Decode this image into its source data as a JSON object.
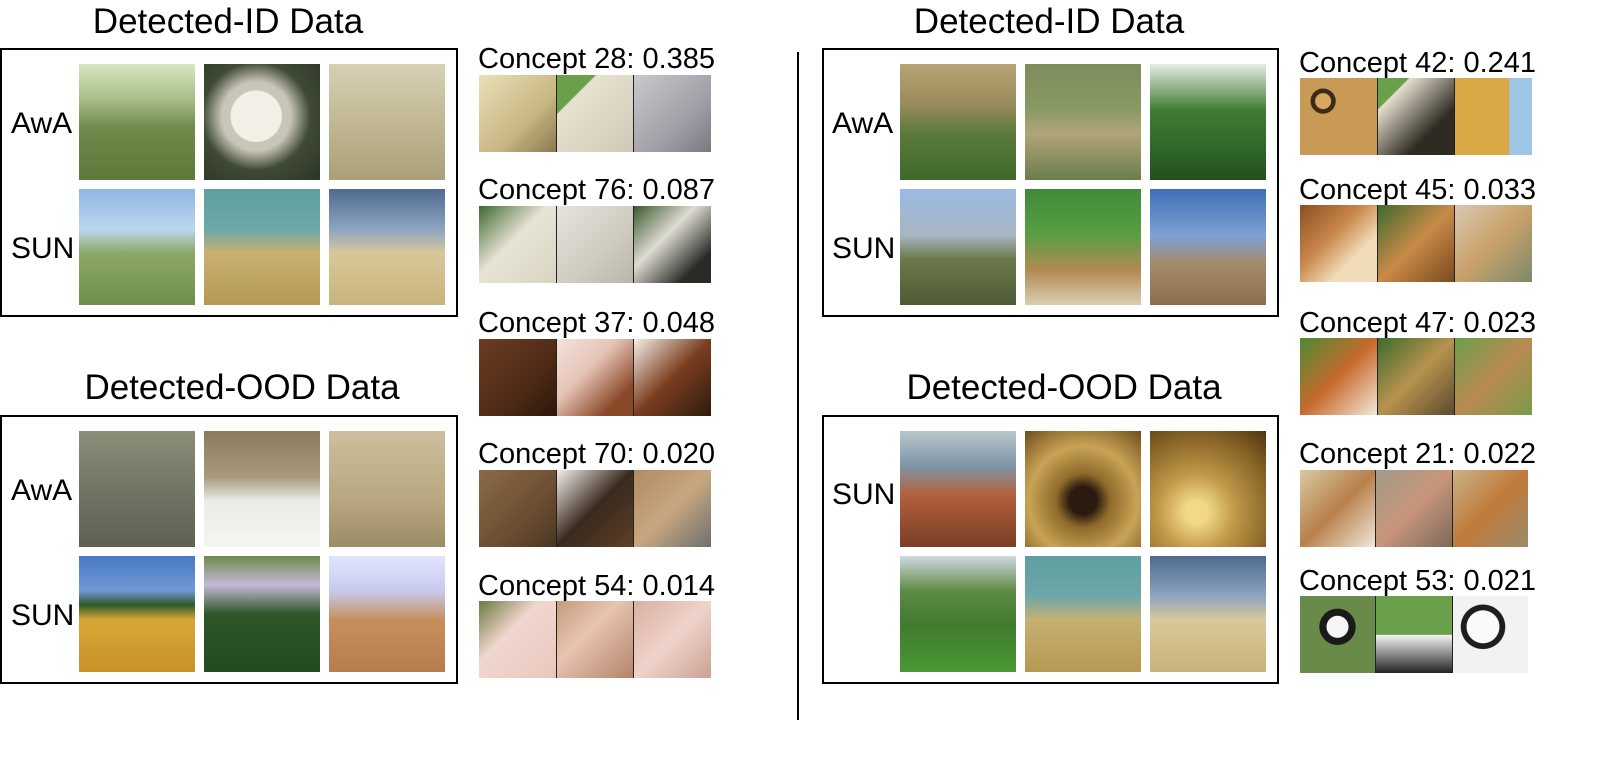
{
  "left": {
    "id_title": "Detected-ID Data",
    "ood_title": "Detected-OOD Data",
    "id_rows": [
      {
        "label": "AwA",
        "images": [
          "sheep-field",
          "sheep-close",
          "sheep-dry"
        ]
      },
      {
        "label": "SUN",
        "images": [
          "grass-sky",
          "hay-teal",
          "hay-sky"
        ]
      }
    ],
    "ood_rows": [
      {
        "label": "AwA",
        "images": [
          "ood-sheep",
          "ood-barn",
          "ood-lambs"
        ]
      },
      {
        "label": "SUN",
        "images": [
          "wheat",
          "topiary",
          "desert-bales"
        ]
      }
    ],
    "concepts": [
      {
        "label": "Concept 28: 0.385"
      },
      {
        "label": "Concept 76: 0.087"
      },
      {
        "label": "Concept 37: 0.048"
      },
      {
        "label": "Concept 70: 0.020"
      },
      {
        "label": "Concept 54: 0.014"
      }
    ]
  },
  "right": {
    "id_title": "Detected-ID Data",
    "ood_title": "Detected-OOD Data",
    "id_rows": [
      {
        "label": "AwA",
        "images": [
          "giraffe-a",
          "giraffe-b",
          "giraffe-c"
        ]
      },
      {
        "label": "SUN",
        "images": [
          "cactus",
          "garden",
          "joshua"
        ]
      }
    ],
    "ood_rows": [
      {
        "label": "SUN",
        "images": [
          "arch",
          "cave",
          "tunnel"
        ]
      },
      {
        "label": "",
        "images": [
          "orchard",
          "hay-teal",
          "hay-sky"
        ]
      }
    ],
    "concepts": [
      {
        "label": "Concept 42: 0.241"
      },
      {
        "label": "Concept 45: 0.033"
      },
      {
        "label": "Concept 47: 0.023"
      },
      {
        "label": "Concept 21: 0.022"
      },
      {
        "label": "Concept 53: 0.021"
      }
    ]
  }
}
